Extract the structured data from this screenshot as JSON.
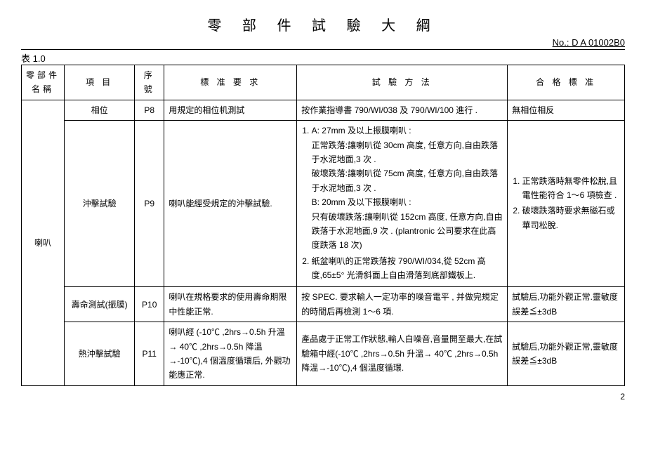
{
  "title": "零 部 件 試 驗 大 綱",
  "docno_label": "No.: ",
  "docno_value": "D A 01002B0",
  "table_label": "表 1.0",
  "headers": {
    "part": "零部件名稱",
    "item": "項 目",
    "seq": "序號",
    "req": "標 准 要 求",
    "method": "試 驗 方 法",
    "pass": "合 格 標 准"
  },
  "part_name": "喇叭",
  "rows": {
    "p8": {
      "item": "相位",
      "seq": "P8",
      "req": "用規定的相位机測試",
      "method": "按作業指導書 790/WI/038 及 790/WI/100 進行 .",
      "pass": "無相位相反"
    },
    "p9": {
      "item": "沖擊試驗",
      "seq": "P9",
      "req": "喇叭能經受規定的沖擊試驗.",
      "method_1_header": "A: 27mm 及以上振膜喇叭 :",
      "method_1_normal": "正常跌落:讓喇叭從 30cm 高度, 任意方向,自由跌落于水泥地面,3 次 .",
      "method_1_break": "破壞跌落:讓喇叭從 75cm 高度, 任意方向,自由跌落于水泥地面,3 次 .",
      "method_1_b": "B: 20mm 及以下振膜喇叭 :",
      "method_1_b_break": "只有破壞跌落:讓喇叭從 152cm 高度, 任意方向,自由跌落于水泥地面,9 次 . (plantronic 公司要求在此高度跌落 18 次)",
      "method_2": "紙盆喇叭的正常跌落按 790/WI/034,從 52cm 高度,65±5° 光滑斜面上自由滑落到底部鐵板上.",
      "pass_1": "正常跌落時無零件松脫,且電性能符合 1～6 項檢查 .",
      "pass_2": "破壞跌落時要求無磁石或華司松脫."
    },
    "p10": {
      "item": "壽命測試(振膜)",
      "seq": "P10",
      "req": "喇叭在規格要求的使用壽命期限中性能正常.",
      "method": "按 SPEC. 要求輸人一定功率的噪音電平 , 并做完規定的時間后再檢測 1～6 項.",
      "pass": "試驗后,功能外觀正常.靈敏度誤差≦±3dB"
    },
    "p11": {
      "item": "熱沖擊試驗",
      "seq": "P11",
      "req": "喇叭經 (-10℃ ,2hrs→0.5h 升溫→ 40℃ ,2hrs→0.5h 降溫→-10℃),4 個溫度循環后, 外觀功能應正常.",
      "method": "產品處于正常工作狀態,輸人白噪音,音量開至最大,在試驗箱中經(-10℃ ,2hrs→0.5h 升溫→ 40℃ ,2hrs→0.5h 降溫→-10℃),4 個溫度循環.",
      "pass": "試驗后,功能外觀正常,靈敏度誤差≦±3dB"
    }
  },
  "page_number": "2"
}
